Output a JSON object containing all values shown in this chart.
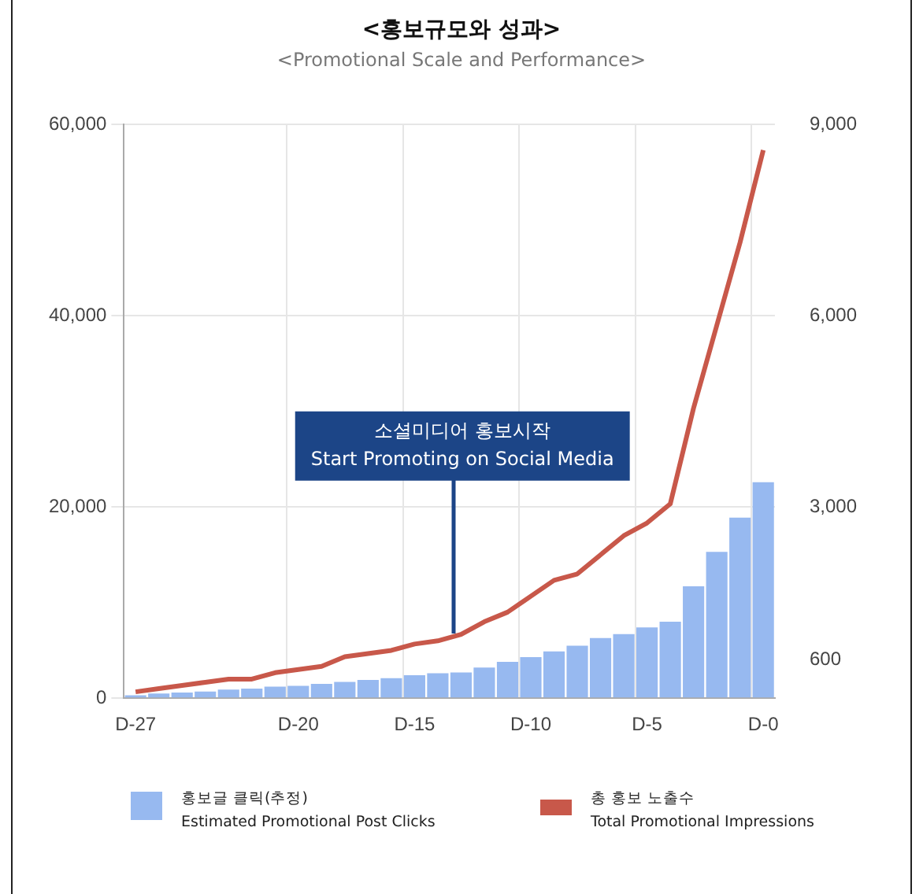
{
  "chart_data": {
    "type": "bar",
    "title": "<홍보규모와 성과>",
    "subtitle": "<Promotional Scale and Performance>",
    "categories": [
      "D-27",
      null,
      null,
      null,
      null,
      null,
      null,
      "D-20",
      null,
      null,
      null,
      null,
      "D-15",
      null,
      null,
      null,
      null,
      "D-10",
      null,
      null,
      null,
      null,
      "D-5",
      null,
      null,
      null,
      null,
      "D-0"
    ],
    "series": [
      {
        "name": "홍보글 클릭(추정)\nEstimated Promotional Post Clicks",
        "color": "#97b9f0",
        "values": [
          300,
          500,
          600,
          700,
          900,
          1000,
          1200,
          1300,
          1500,
          1700,
          1900,
          2100,
          2400,
          2600,
          2700,
          3200,
          3800,
          4300,
          4900,
          5500,
          6300,
          6700,
          7400,
          8000,
          11700,
          15300,
          18900,
          22600
        ]
      },
      {
        "name": "총 홍보 노출수\nTotal Promotional Impressions",
        "type": "line",
        "axis": "y2",
        "color": "#c8584a",
        "values": [
          100,
          150,
          200,
          250,
          300,
          300,
          400,
          450,
          500,
          650,
          700,
          750,
          850,
          900,
          1000,
          1200,
          1350,
          1600,
          1850,
          1950,
          2250,
          2550,
          2750,
          3050,
          4550,
          5850,
          7150,
          8600
        ]
      }
    ],
    "ylim": [
      0,
      60000
    ],
    "yticks": [
      0,
      {
        "value": 20000,
        "label": "20,000"
      },
      {
        "value": 40000,
        "label": "40,000"
      },
      {
        "value": 60000,
        "label": "60,000"
      }
    ],
    "y2lim": [
      0,
      9000
    ],
    "y2ticks": [
      600,
      {
        "value": 3000,
        "label": "3,000"
      },
      {
        "value": 6000,
        "label": "6,000"
      },
      {
        "value": 9000,
        "label": "9,000"
      }
    ],
    "annotations": [
      {
        "text": "소셜미디어 홍보시작\nStart Promoting on Social Media",
        "y": 6700
      }
    ],
    "grid": true,
    "legend": "bottom",
    "marker": "none"
  }
}
